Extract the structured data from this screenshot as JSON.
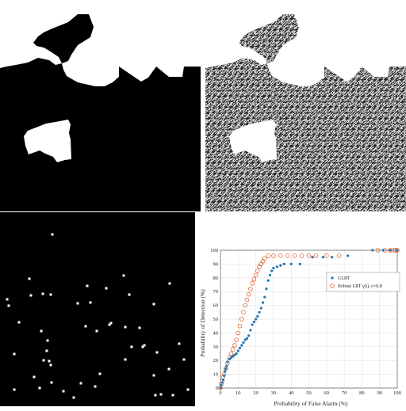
{
  "panels": [
    {
      "id": "a",
      "kind": "binary-mask",
      "description_visible": false
    },
    {
      "id": "b",
      "kind": "noisy-sar-image"
    },
    {
      "id": "c",
      "kind": "sparse-target-map"
    },
    {
      "id": "d",
      "kind": "roc-chart"
    }
  ],
  "colors": {
    "background_dark": "#000000",
    "mask_white": "#ffffff",
    "glrt": "#1f77b4",
    "robust": "#d95319"
  },
  "chart_data": {
    "type": "scatter",
    "xlabel": "Probability of False Alarm (%)",
    "ylabel": "Probability of Detection (%)",
    "xlim": [
      0,
      100
    ],
    "ylim": [
      0,
      100
    ],
    "xticks": [
      0,
      10,
      20,
      30,
      40,
      50,
      60,
      70,
      80,
      90,
      100
    ],
    "yticks": [
      0,
      10,
      20,
      30,
      40,
      50,
      60,
      70,
      80,
      90,
      100
    ],
    "grid": true,
    "legend_position": "center-right",
    "series": [
      {
        "name": "GLRT",
        "marker": "filled-dot",
        "color": "#1f77b4",
        "points": [
          [
            0,
            0
          ],
          [
            0.5,
            2
          ],
          [
            1,
            4
          ],
          [
            1.5,
            6
          ],
          [
            2,
            9
          ],
          [
            2.5,
            12
          ],
          [
            3,
            14
          ],
          [
            3.5,
            16
          ],
          [
            4,
            19
          ],
          [
            5,
            21
          ],
          [
            6,
            22
          ],
          [
            7,
            23
          ],
          [
            8,
            24
          ],
          [
            9,
            25
          ],
          [
            10,
            27
          ],
          [
            11,
            29
          ],
          [
            12,
            31
          ],
          [
            13,
            33
          ],
          [
            14,
            35
          ],
          [
            15,
            36
          ],
          [
            16,
            38
          ],
          [
            17,
            42
          ],
          [
            18,
            46
          ],
          [
            19,
            48
          ],
          [
            20,
            50
          ],
          [
            21,
            52
          ],
          [
            22,
            55
          ],
          [
            23,
            58
          ],
          [
            24,
            62
          ],
          [
            25,
            66
          ],
          [
            26,
            72
          ],
          [
            27,
            78
          ],
          [
            28,
            82
          ],
          [
            29,
            85
          ],
          [
            30,
            87
          ],
          [
            32,
            88
          ],
          [
            34,
            89
          ],
          [
            36,
            90
          ],
          [
            40,
            90
          ],
          [
            45,
            90
          ],
          [
            52,
            95
          ],
          [
            58,
            95
          ],
          [
            63,
            95
          ],
          [
            72,
            96
          ],
          [
            86,
            100
          ],
          [
            92,
            100
          ],
          [
            96,
            100
          ],
          [
            100,
            100
          ]
        ]
      },
      {
        "name": "Robust LRT γ(t), ε=0.8",
        "marker": "open-circle",
        "color": "#d95319",
        "points": [
          [
            0,
            0
          ],
          [
            0.5,
            3
          ],
          [
            1,
            5
          ],
          [
            1.5,
            8
          ],
          [
            2,
            10
          ],
          [
            3,
            14
          ],
          [
            4,
            18
          ],
          [
            5,
            22
          ],
          [
            6,
            25
          ],
          [
            7,
            28
          ],
          [
            8,
            31
          ],
          [
            9,
            35
          ],
          [
            10,
            40
          ],
          [
            11,
            45
          ],
          [
            12,
            50
          ],
          [
            13,
            55
          ],
          [
            14,
            60
          ],
          [
            15,
            64
          ],
          [
            16,
            68
          ],
          [
            17,
            72
          ],
          [
            18,
            76
          ],
          [
            19,
            79
          ],
          [
            20,
            82
          ],
          [
            21,
            85
          ],
          [
            22,
            88
          ],
          [
            23,
            90
          ],
          [
            24,
            92
          ],
          [
            25,
            94
          ],
          [
            27,
            96
          ],
          [
            30,
            96
          ],
          [
            34,
            96
          ],
          [
            38,
            96
          ],
          [
            42,
            96
          ],
          [
            46,
            96
          ],
          [
            50,
            96
          ],
          [
            54,
            96
          ],
          [
            60,
            96
          ],
          [
            67,
            96
          ],
          [
            89,
            100
          ],
          [
            93,
            100
          ],
          [
            96,
            100
          ],
          [
            98,
            100
          ],
          [
            99,
            100
          ],
          [
            100,
            100
          ]
        ]
      }
    ],
    "legend_entries": [
      "GLRT",
      "Robust LRT γ(t), ε=0.8"
    ]
  }
}
